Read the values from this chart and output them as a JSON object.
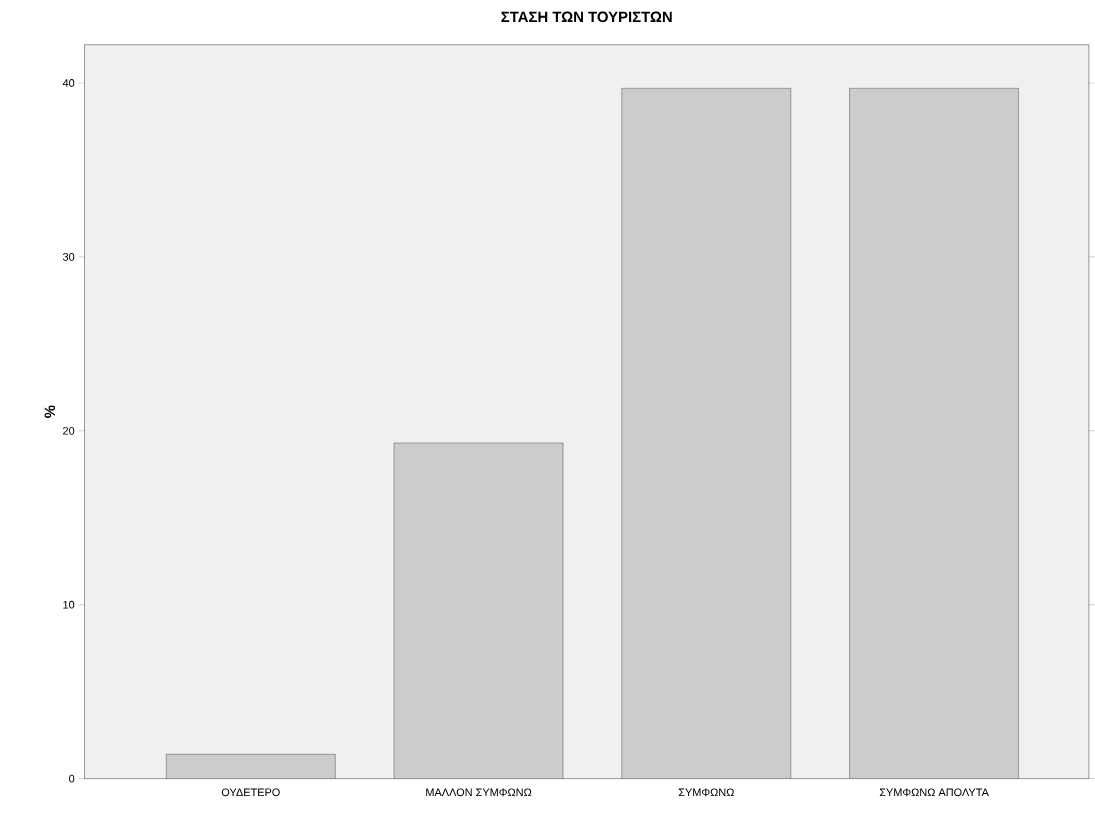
{
  "chart_data": {
    "type": "bar",
    "title": "ΣΤΑΣΗ ΤΩΝ ΤΟΥΡΙΣΤΩΝ",
    "ylabel": "%",
    "categories": [
      "ΟΥΔΕΤΕΡΟ",
      "ΜΑΛΛΟΝ ΣΥΜΦΩΝΩ",
      "ΣΥΜΦΩΝΩ",
      "ΣΥΜΦΩΝΩ ΑΠΟΛΥΤΑ"
    ],
    "values": [
      1.4,
      19.3,
      39.7,
      39.7
    ],
    "color": "#cccccc",
    "ylim": [
      0,
      42.2
    ],
    "yticks": [
      0,
      10,
      20,
      30,
      40
    ]
  }
}
